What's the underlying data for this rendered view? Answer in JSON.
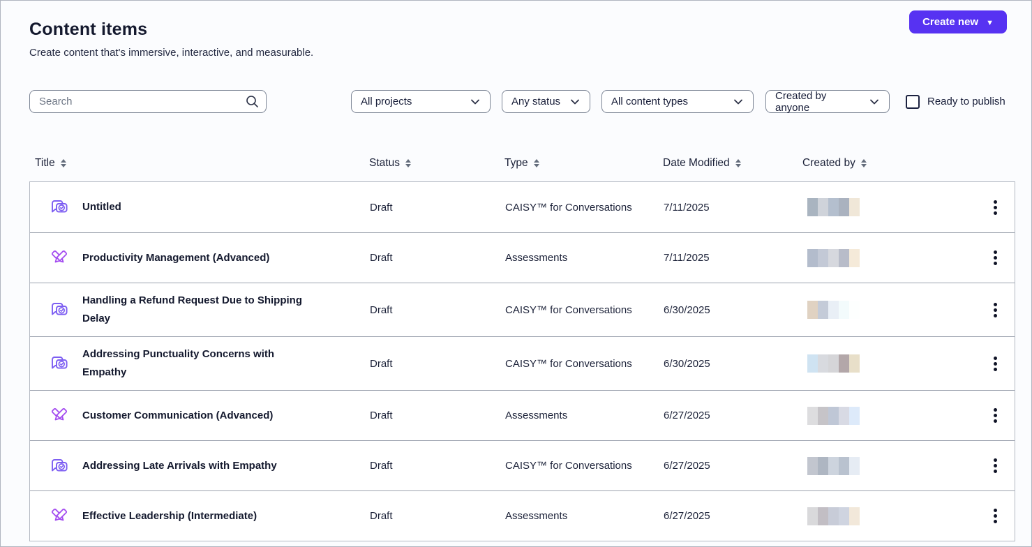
{
  "page": {
    "title": "Content items",
    "subtitle": "Create content that's immersive, interactive, and measurable."
  },
  "header": {
    "create_new_label": "Create new",
    "create_new_caret": "▼"
  },
  "filters": {
    "search_placeholder": "Search",
    "dropdowns": [
      {
        "label": "All projects"
      },
      {
        "label": "Any status"
      },
      {
        "label": "All content types"
      },
      {
        "label": "Created by anyone"
      }
    ],
    "ready_to_publish_label": "Ready to publish",
    "ready_to_publish_checked": false
  },
  "table": {
    "columns": [
      "Title",
      "Status",
      "Type",
      "Date Modified",
      "Created by"
    ],
    "rows": [
      {
        "icon": "conversation-icon",
        "title": "Untitled",
        "status": "Draft",
        "type": "CAISY™ for Conversations",
        "date_modified": "7/11/2025",
        "created_by_redacted": [
          "#a9b4c0",
          "#cfd3da",
          "#b4bfce",
          "#aab2bf",
          "#f0e7d8"
        ]
      },
      {
        "icon": "assessment-icon",
        "title": "Productivity Management (Advanced)",
        "status": "Draft",
        "type": "Assessments",
        "date_modified": "7/11/2025",
        "created_by_redacted": [
          "#b3bccc",
          "#c3c9d6",
          "#d6d8de",
          "#b8bcc9",
          "#f5ead9"
        ]
      },
      {
        "icon": "conversation-icon",
        "title": "Handling a Refund Request Due to Shipping Delay",
        "status": "Draft",
        "type": "CAISY™ for Conversations",
        "date_modified": "6/30/2025",
        "created_by_redacted": [
          "#e0d2c2",
          "#c4cbd8",
          "#e9eff6",
          "#f3fbfc",
          "#fdfffe"
        ]
      },
      {
        "icon": "conversation-icon",
        "title": "Addressing Punctuality Concerns with Empathy",
        "status": "Draft",
        "type": "CAISY™ for Conversations",
        "date_modified": "6/30/2025",
        "created_by_redacted": [
          "#cfe3f2",
          "#d8dadf",
          "#d5d5d8",
          "#b3a7a9",
          "#e8dfc9"
        ]
      },
      {
        "icon": "assessment-icon",
        "title": "Customer Communication (Advanced)",
        "status": "Draft",
        "type": "Assessments",
        "date_modified": "6/27/2025",
        "created_by_redacted": [
          "#dddddf",
          "#c6c4c8",
          "#bfc7d6",
          "#d8dae4",
          "#ddeafa"
        ]
      },
      {
        "icon": "conversation-icon",
        "title": "Addressing Late Arrivals with Empathy",
        "status": "Draft",
        "type": "CAISY™ for Conversations",
        "date_modified": "6/27/2025",
        "created_by_redacted": [
          "#c2c6cf",
          "#aeb6c2",
          "#cdd4de",
          "#b9c2cf",
          "#e6ecf4"
        ]
      },
      {
        "icon": "assessment-icon",
        "title": "Effective Leadership (Intermediate)",
        "status": "Draft",
        "type": "Assessments",
        "date_modified": "6/27/2025",
        "created_by_redacted": [
          "#d9d9db",
          "#c2bec4",
          "#c8ccd8",
          "#cfd4e0",
          "#f2e8da"
        ]
      }
    ]
  },
  "colors": {
    "accent_purple": "#5732f2",
    "conversation_icon_purple": "#7d5ef2",
    "assessment_icon_purple": "#a44df0",
    "text_navy": "#14192e",
    "row_separator": "#9ca2ae"
  }
}
